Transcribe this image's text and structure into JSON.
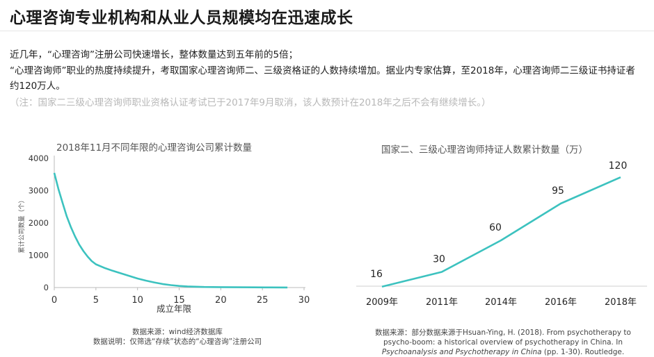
{
  "page": {
    "title": "心理咨询专业机构和从业人员规模均在迅速成长",
    "paragraph1": "近几年，“心理咨询”注册公司快速增长，整体数量达到五年前的5倍；",
    "paragraph2": "“心理咨询师”职业的热度持续提升，考取国家心理咨询师二、三级资格证的人数持续增加。据业内专家估算，至2018年，心理咨询师二三级证书持证者约120万人。",
    "note": "（注：国家二三级心理咨询师职业资格认证考试已于2017年9月取消，该人数预计在2018年之后不会有继续增长。）"
  },
  "colors": {
    "line": "#3cc2bf",
    "text": "#1d1d1d",
    "note": "#b8b8b8",
    "axis": "#bbbbbb"
  },
  "chart_data": [
    {
      "type": "line",
      "title": "2018年11月不同年限的心理咨询公司累计数量",
      "xlabel": "成立年限",
      "ylabel": "累计公司数量（个）",
      "xlim": [
        0,
        30
      ],
      "ylim": [
        0,
        4000
      ],
      "xticks": [
        "0",
        "5",
        "10",
        "15",
        "20",
        "25",
        "30"
      ],
      "yticks": [
        "0",
        "1000",
        "2000",
        "3000",
        "4000"
      ],
      "grid": false,
      "x": [
        0,
        0.5,
        1,
        1.5,
        2,
        2.5,
        3,
        3.5,
        4,
        4.5,
        5,
        6,
        7,
        8,
        9,
        10,
        11,
        12,
        13,
        14,
        15,
        16,
        17,
        18,
        20,
        22,
        24,
        26,
        28
      ],
      "y": [
        3550,
        3050,
        2620,
        2200,
        1870,
        1580,
        1330,
        1130,
        960,
        820,
        720,
        610,
        520,
        440,
        360,
        280,
        215,
        160,
        110,
        75,
        50,
        35,
        25,
        18,
        12,
        8,
        6,
        4,
        3
      ],
      "footnote": [
        "数据来源：wind经济数据库",
        "数据说明：仅筛选“存续”状态的“心理咨询”注册公司"
      ]
    },
    {
      "type": "line",
      "title": "国家二、三级心理咨询师持证人数累计数量（万）",
      "categories": [
        "2009年",
        "2011年",
        "2014年",
        "2016年",
        "2018年"
      ],
      "values": [
        16,
        30,
        60,
        95,
        120
      ],
      "data_labels": [
        "16",
        "30",
        "60",
        "95",
        "120"
      ],
      "grid": false,
      "footnote": {
        "line1": "数据来源：部分数据来源于Hsuan-Ying, H. (2018). From psychotherapy to",
        "line2": "psycho-boom: a historical overview of psychotherapy in China. In",
        "line3_italic": "Psychoanalysis and Psychotherapy in China",
        "line3_rest": " (pp. 1-30). Routledge."
      }
    }
  ]
}
